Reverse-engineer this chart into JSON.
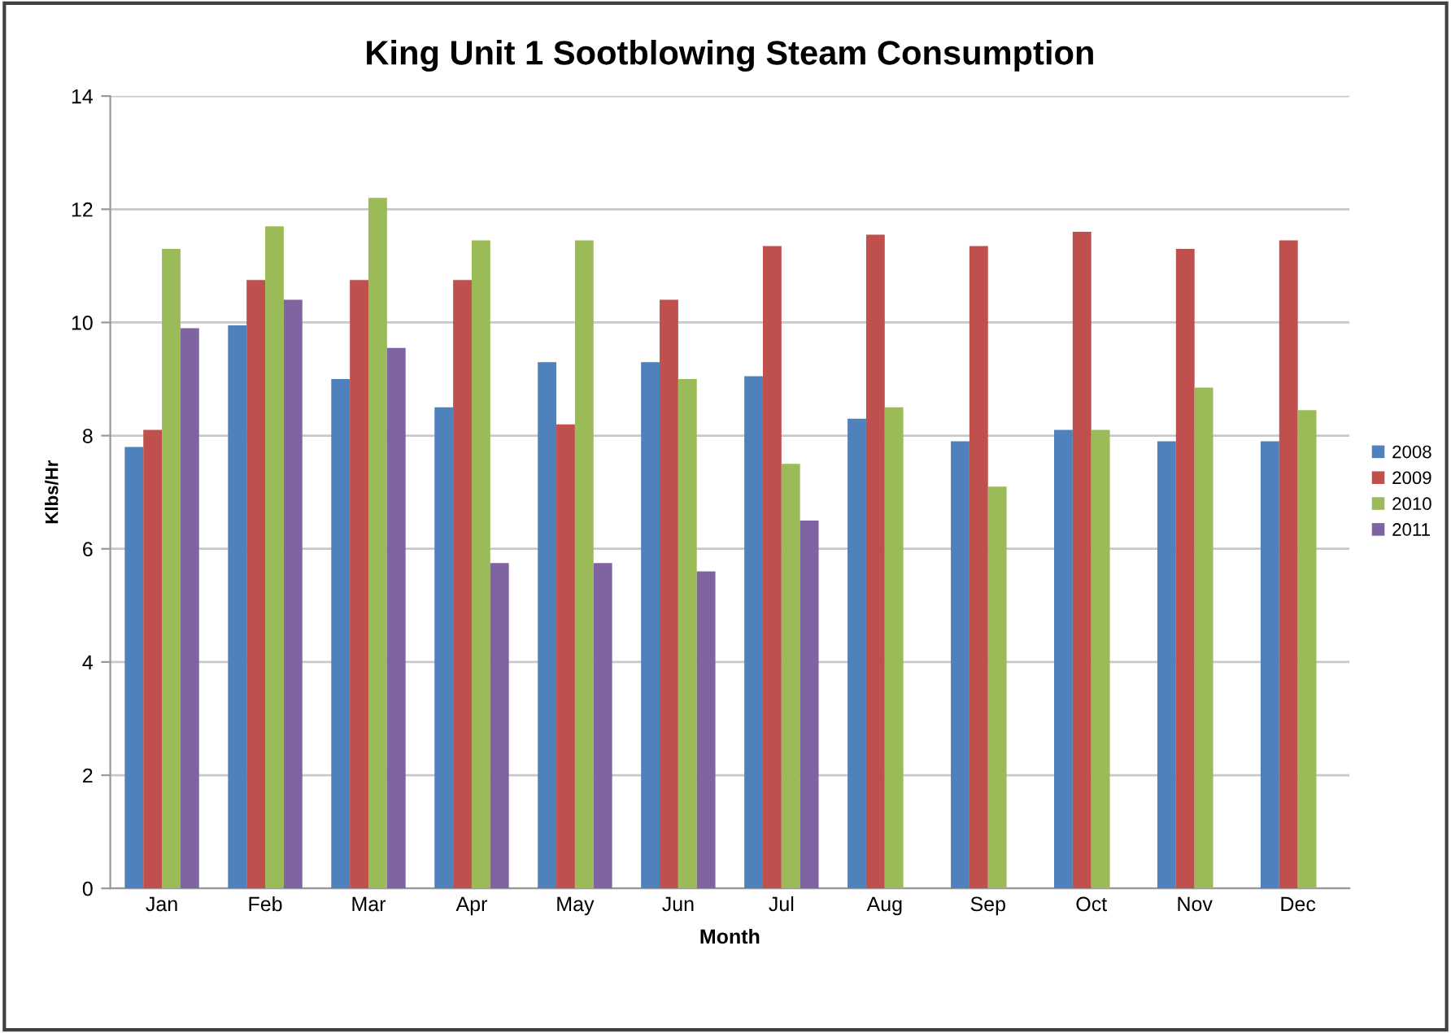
{
  "chart_data": {
    "type": "bar",
    "title": "King Unit 1 Sootblowing Steam Consumption",
    "xlabel": "Month",
    "ylabel": "Klbs/Hr",
    "categories": [
      "Jan",
      "Feb",
      "Mar",
      "Apr",
      "May",
      "Jun",
      "Jul",
      "Aug",
      "Sep",
      "Oct",
      "Nov",
      "Dec"
    ],
    "series": [
      {
        "name": "2008",
        "color": "#4f81bd",
        "values": [
          7.8,
          9.95,
          9.0,
          8.5,
          9.3,
          9.3,
          9.05,
          8.3,
          7.9,
          8.1,
          7.9,
          7.9
        ]
      },
      {
        "name": "2009",
        "color": "#c0504d",
        "values": [
          8.1,
          10.75,
          10.75,
          10.75,
          8.2,
          10.4,
          11.35,
          11.55,
          11.35,
          11.6,
          11.3,
          11.45
        ]
      },
      {
        "name": "2010",
        "color": "#9bbb59",
        "values": [
          11.3,
          11.7,
          12.2,
          11.45,
          11.45,
          9.0,
          7.5,
          8.5,
          7.1,
          8.1,
          8.85,
          8.45
        ]
      },
      {
        "name": "2011",
        "color": "#8064a2",
        "values": [
          9.9,
          10.4,
          9.55,
          5.75,
          5.75,
          5.6,
          6.5,
          null,
          null,
          null,
          null,
          null
        ]
      }
    ],
    "ylim": [
      0,
      14
    ],
    "yticks": [
      0,
      2,
      4,
      6,
      8,
      10,
      12,
      14
    ],
    "grid": "y",
    "legend": "right"
  }
}
